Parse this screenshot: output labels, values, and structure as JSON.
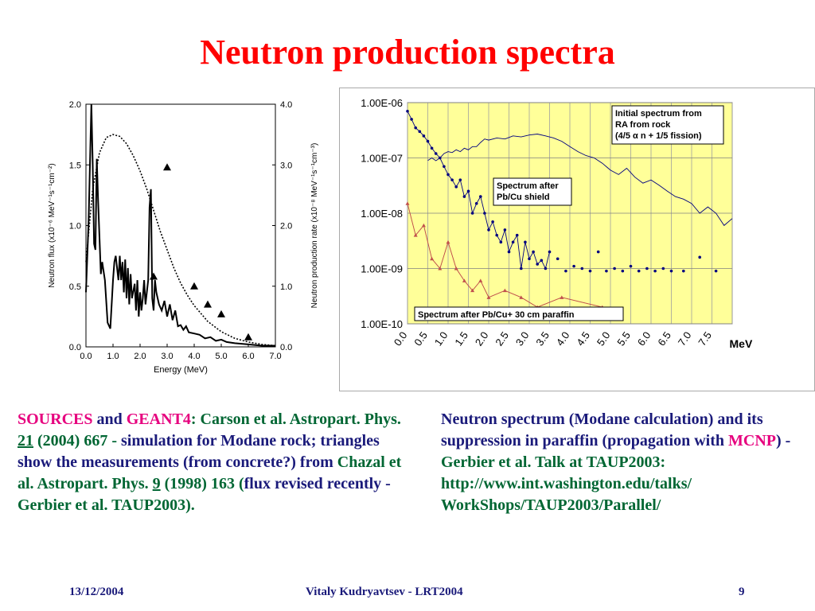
{
  "slide": {
    "title": "Neutron production spectra",
    "footer": {
      "date": "13/12/2004",
      "author": "Vitaly Kudryavtsev - LRT2004",
      "page": "9"
    }
  },
  "captions": {
    "left": {
      "sources": "SOURCES",
      "and": " and ",
      "geant4": "GEANT4",
      "text1": ": Carson et al. Astropart. Phys. ",
      "vol1": "21",
      "text2": " (2004) 667 - ",
      "simulation": "simulation for Modane rock; triangles show the measurements (from concrete?) from",
      "text3": " Chazal et al. Astropart. Phys. ",
      "vol2": "9",
      "text4": " (1998) 163 (",
      "flux": "flux revised recently - ",
      "text5": "Gerbier et al. TAUP2003)."
    },
    "right": {
      "text1": "Neutron spectrum (Modane calculation) and its suppression in paraffin (propagation with ",
      "mcnp": "MCNP",
      "text2": ") - ",
      "text3": "Gerbier et al. Talk at TAUP2003: http://www.int.washington.edu/talks/ WorkShops/TAUP2003/Parallel/"
    }
  },
  "chart_data": [
    {
      "type": "line",
      "xlabel": "Energy (MeV)",
      "ylabel_left": "Neutron flux (x10⁻⁶ MeV⁻¹s⁻¹cm⁻²)",
      "ylabel_right": "Neutron production rate (x10⁻⁸ MeV⁻¹s⁻¹cm⁻³)",
      "xlim": [
        0,
        7
      ],
      "ylim_left": [
        0,
        2
      ],
      "ylim_right": [
        0,
        4
      ],
      "x_ticks": [
        "0.0",
        "1.0",
        "2.0",
        "3.0",
        "4.0",
        "5.0",
        "6.0",
        "7.0"
      ],
      "y_ticks_left": [
        "0.0",
        "0.5",
        "1.0",
        "1.5",
        "2.0"
      ],
      "y_ticks_right": [
        "0.0",
        "1.0",
        "2.0",
        "3.0",
        "4.0"
      ],
      "series": [
        {
          "style": "solid",
          "axis": "left",
          "points": [
            [
              0,
              0.45
            ],
            [
              0.1,
              1.05
            ],
            [
              0.2,
              2.0
            ],
            [
              0.25,
              1.5
            ],
            [
              0.3,
              0.85
            ],
            [
              0.35,
              0.8
            ],
            [
              0.4,
              1.55
            ],
            [
              0.45,
              1.2
            ],
            [
              0.5,
              0.9
            ],
            [
              0.55,
              0.6
            ],
            [
              0.6,
              0.7
            ],
            [
              0.7,
              0.55
            ],
            [
              0.8,
              0.2
            ],
            [
              0.9,
              0.15
            ],
            [
              1.0,
              0.55
            ],
            [
              1.05,
              0.7
            ],
            [
              1.1,
              0.75
            ],
            [
              1.2,
              0.55
            ],
            [
              1.25,
              0.75
            ],
            [
              1.3,
              0.55
            ],
            [
              1.35,
              0.7
            ],
            [
              1.4,
              0.45
            ],
            [
              1.45,
              0.72
            ],
            [
              1.5,
              0.4
            ],
            [
              1.55,
              0.65
            ],
            [
              1.6,
              0.35
            ],
            [
              1.65,
              0.6
            ],
            [
              1.7,
              0.4
            ],
            [
              1.8,
              0.52
            ],
            [
              1.85,
              0.3
            ],
            [
              1.9,
              0.55
            ],
            [
              1.95,
              0.25
            ],
            [
              2.0,
              0.45
            ],
            [
              2.05,
              0.3
            ],
            [
              2.1,
              0.4
            ],
            [
              2.15,
              0.55
            ],
            [
              2.2,
              0.35
            ],
            [
              2.3,
              0.55
            ],
            [
              2.35,
              1.15
            ],
            [
              2.4,
              1.3
            ],
            [
              2.45,
              0.4
            ],
            [
              2.5,
              0.3
            ],
            [
              2.55,
              0.55
            ],
            [
              2.6,
              0.45
            ],
            [
              2.7,
              0.35
            ],
            [
              2.8,
              0.3
            ],
            [
              2.9,
              0.38
            ],
            [
              3.0,
              0.25
            ],
            [
              3.1,
              0.35
            ],
            [
              3.2,
              0.22
            ],
            [
              3.3,
              0.3
            ],
            [
              3.4,
              0.17
            ],
            [
              3.5,
              0.18
            ],
            [
              3.6,
              0.14
            ],
            [
              3.7,
              0.17
            ],
            [
              3.8,
              0.12
            ],
            [
              4.0,
              0.11
            ],
            [
              4.2,
              0.1
            ],
            [
              4.4,
              0.07
            ],
            [
              4.6,
              0.08
            ],
            [
              4.8,
              0.05
            ],
            [
              5.0,
              0.06
            ],
            [
              5.2,
              0.04
            ],
            [
              5.5,
              0.03
            ],
            [
              6.0,
              0.02
            ],
            [
              6.5,
              0.01
            ],
            [
              7.0,
              0.01
            ]
          ]
        },
        {
          "style": "dotted",
          "axis": "right",
          "points": [
            [
              0,
              1.4
            ],
            [
              0.25,
              2.6
            ],
            [
              0.5,
              3.2
            ],
            [
              0.75,
              3.45
            ],
            [
              1.0,
              3.5
            ],
            [
              1.25,
              3.47
            ],
            [
              1.5,
              3.35
            ],
            [
              1.75,
              3.15
            ],
            [
              2.0,
              2.9
            ],
            [
              2.25,
              2.6
            ],
            [
              2.5,
              2.25
            ],
            [
              2.75,
              1.9
            ],
            [
              3.0,
              1.6
            ],
            [
              3.25,
              1.3
            ],
            [
              3.5,
              1.05
            ],
            [
              3.75,
              0.85
            ],
            [
              4.0,
              0.68
            ],
            [
              4.5,
              0.42
            ],
            [
              5.0,
              0.25
            ],
            [
              5.5,
              0.14
            ],
            [
              6.0,
              0.08
            ],
            [
              6.5,
              0.04
            ],
            [
              7.0,
              0.02
            ]
          ]
        },
        {
          "style": "triangles",
          "axis": "left",
          "points": [
            [
              3.0,
              1.48
            ],
            [
              2.5,
              0.58
            ],
            [
              4.0,
              0.5
            ],
            [
              4.5,
              0.35
            ],
            [
              5.0,
              0.27
            ],
            [
              6.0,
              0.08
            ]
          ]
        }
      ]
    },
    {
      "type": "line",
      "xlabel": "MeV",
      "yscale": "log",
      "ylim": [
        1e-10,
        1e-06
      ],
      "xlim": [
        0,
        8
      ],
      "y_ticks": [
        "1.00E-06",
        "1.00E-07",
        "1.00E-08",
        "1.00E-09",
        "1.00E-10"
      ],
      "x_ticks": [
        "0.0",
        "0.5",
        "1.0",
        "1.5",
        "2.0",
        "2.5",
        "3.0",
        "3.5",
        "4.0",
        "4.5",
        "5.0",
        "5.5",
        "6.0",
        "6.5",
        "7.0",
        "7.5"
      ],
      "background": "#ffff99",
      "annotations": [
        "Initial spectrum from RA from rock (4/5 α n + 1/5 fission)",
        "Spectrum after Pb/Cu shield",
        "Spectrum after Pb/Cu+ 30 cm paraffin"
      ],
      "series": [
        {
          "color": "#000080",
          "x": [
            0.5,
            0.6,
            0.7,
            0.8,
            0.9,
            1.0,
            1.1,
            1.2,
            1.3,
            1.4,
            1.5,
            1.6,
            1.7,
            1.8,
            1.9,
            2.0,
            2.2,
            2.4,
            2.6,
            2.8,
            3.0,
            3.2,
            3.4,
            3.6,
            3.8,
            4.0,
            4.2,
            4.4,
            4.6,
            4.8,
            5.0,
            5.2,
            5.4,
            5.6,
            5.8,
            6.0,
            6.2,
            6.4,
            6.6,
            6.8,
            7.0,
            7.2,
            7.4,
            7.6,
            7.8,
            8.0
          ],
          "y": [
            9e-08,
            1e-07,
            8.9e-08,
            1e-07,
            1.2e-07,
            1.3e-07,
            1.25e-07,
            1.4e-07,
            1.3e-07,
            1.5e-07,
            1.4e-07,
            1.6e-07,
            1.6e-07,
            1.9e-07,
            2.2e-07,
            2.1e-07,
            2.3e-07,
            2.2e-07,
            2.5e-07,
            2.4e-07,
            2.6e-07,
            2.7e-07,
            2.5e-07,
            2.3e-07,
            2e-07,
            1.6e-07,
            1.3e-07,
            1.1e-07,
            1e-07,
            8e-08,
            6e-08,
            5e-08,
            6.5e-08,
            4.5e-08,
            3.5e-08,
            4e-08,
            3.2e-08,
            2.5e-08,
            2e-08,
            1.8e-08,
            1.5e-08,
            1e-08,
            1.3e-08,
            1e-08,
            6e-09,
            8e-09
          ]
        },
        {
          "color": "#000080",
          "marker": "dot",
          "x": [
            0,
            0.1,
            0.2,
            0.3,
            0.4,
            0.5,
            0.6,
            0.7,
            0.8,
            0.9,
            1.0,
            1.1,
            1.2,
            1.3,
            1.4,
            1.5,
            1.6,
            1.7,
            1.8,
            1.9,
            2.0,
            2.1,
            2.2,
            2.3,
            2.4,
            2.5,
            2.6,
            2.7,
            2.8,
            2.9,
            3.0,
            3.1,
            3.2,
            3.3,
            3.4,
            3.5
          ],
          "y": [
            7e-07,
            5e-07,
            3.5e-07,
            3e-07,
            2.5e-07,
            2e-07,
            1.5e-07,
            1.2e-07,
            1e-07,
            7e-08,
            5e-08,
            4e-08,
            3e-08,
            4e-08,
            2e-08,
            2.5e-08,
            1e-08,
            1.5e-08,
            2e-08,
            1e-08,
            5e-09,
            7e-09,
            4e-09,
            3e-09,
            5e-09,
            2e-09,
            3e-09,
            4e-09,
            1e-09,
            3e-09,
            1.5e-09,
            2e-09,
            1.2e-09,
            1.4e-09,
            1e-09,
            2e-09
          ]
        },
        {
          "color": "#000080",
          "marker": "dot",
          "x": [
            3.7,
            3.9,
            4.1,
            4.3,
            4.5,
            4.7,
            4.9,
            5.1,
            5.3,
            5.5,
            5.7,
            5.9,
            6.1,
            6.3,
            6.5,
            6.8,
            7.2,
            7.6
          ],
          "y": [
            1.5e-09,
            9e-10,
            1.1e-09,
            1e-09,
            9e-10,
            2e-09,
            9e-10,
            1e-09,
            9e-10,
            1.1e-09,
            9e-10,
            1e-09,
            9e-10,
            1e-09,
            9e-10,
            9e-10,
            1.6e-09,
            9e-10
          ]
        },
        {
          "color": "#c0504d",
          "marker": "triangle",
          "x": [
            0.0,
            0.2,
            0.4,
            0.6,
            0.8,
            1.0,
            1.2,
            1.4,
            1.6,
            1.8,
            2.0,
            2.4,
            2.8,
            3.2,
            3.8,
            4.8
          ],
          "y": [
            1.5e-08,
            4e-09,
            6e-09,
            1.5e-09,
            1e-09,
            3e-09,
            1e-09,
            6e-10,
            4e-10,
            6e-10,
            3e-10,
            4e-10,
            3e-10,
            2e-10,
            3e-10,
            2e-10
          ]
        }
      ]
    }
  ]
}
